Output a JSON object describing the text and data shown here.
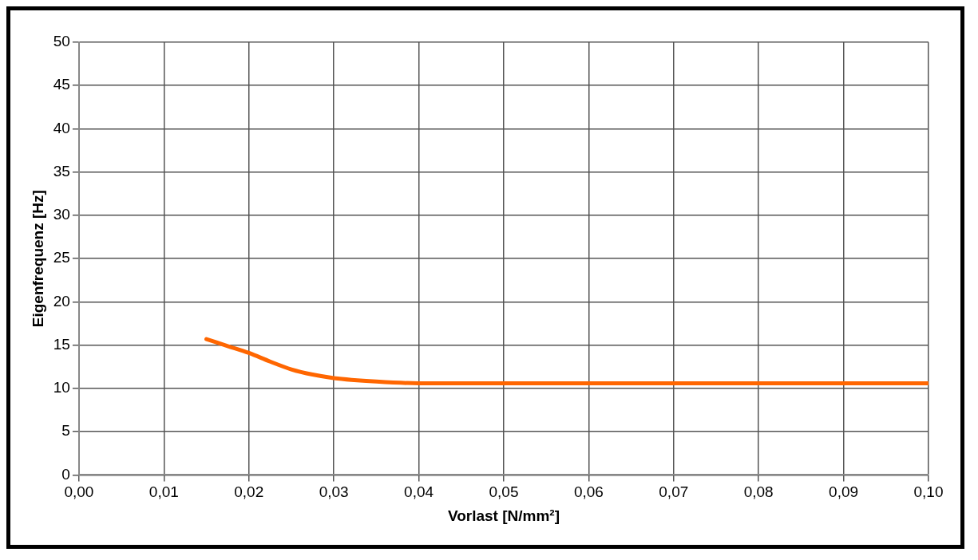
{
  "chart_data": {
    "type": "line",
    "xlabel": "Vorlast [N/mm²]",
    "ylabel": "Eigenfrequenz [Hz]",
    "xlim": [
      0,
      0.1
    ],
    "xticks": [
      {
        "value": 0,
        "label": "0,00"
      },
      {
        "value": 0.01,
        "label": "0,01"
      },
      {
        "value": 0.02,
        "label": "0,02"
      },
      {
        "value": 0.03,
        "label": "0,03"
      },
      {
        "value": 0.04,
        "label": "0,04"
      },
      {
        "value": 0.05,
        "label": "0,05"
      },
      {
        "value": 0.06,
        "label": "0,06"
      },
      {
        "value": 0.07,
        "label": "0,07"
      },
      {
        "value": 0.08,
        "label": "0,08"
      },
      {
        "value": 0.09,
        "label": "0,09"
      },
      {
        "value": 0.1,
        "label": "0,10"
      }
    ],
    "ylim": [
      0,
      50
    ],
    "yticks": [
      0,
      5,
      10,
      15,
      20,
      25,
      30,
      35,
      40,
      45,
      50
    ],
    "grid": true,
    "marker": "none",
    "line_style": "solid",
    "series": [
      {
        "color": "#ff6600",
        "x": [
          0.015,
          0.0175,
          0.02,
          0.0225,
          0.025,
          0.0275,
          0.03,
          0.035,
          0.04,
          0.05,
          0.06,
          0.07,
          0.08,
          0.09,
          0.1
        ],
        "values": [
          15.7,
          14.9,
          14.1,
          13.1,
          12.2,
          11.6,
          11.2,
          10.8,
          10.6,
          10.6,
          10.6,
          10.6,
          10.6,
          10.6,
          10.6
        ]
      }
    ]
  }
}
